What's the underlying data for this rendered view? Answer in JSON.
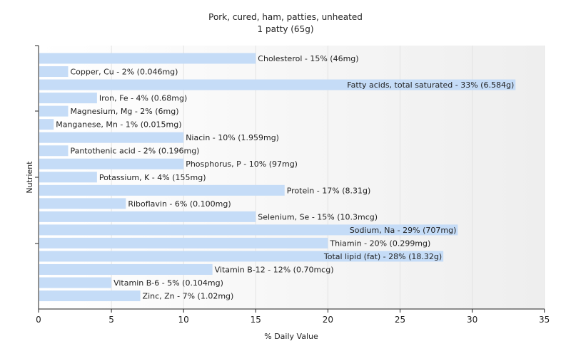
{
  "chart_data": {
    "type": "bar",
    "orientation": "horizontal",
    "title": "Pork, cured, ham, patties, unheated",
    "subtitle": "1 patty (65g)",
    "xlabel": "% Daily Value",
    "ylabel": "Nutrient",
    "xlim": [
      0,
      35
    ],
    "xticks": [
      0,
      5,
      10,
      15,
      20,
      25,
      30,
      35
    ],
    "grid": true,
    "bar_color": "#c5dcf7",
    "categories": [
      "Cholesterol",
      "Copper, Cu",
      "Fatty acids, total saturated",
      "Iron, Fe",
      "Magnesium, Mg",
      "Manganese, Mn",
      "Niacin",
      "Pantothenic acid",
      "Phosphorus, P",
      "Potassium, K",
      "Protein",
      "Riboflavin",
      "Selenium, Se",
      "Sodium, Na",
      "Thiamin",
      "Total lipid (fat)",
      "Vitamin B-12",
      "Vitamin B-6",
      "Zinc, Zn"
    ],
    "values": [
      15,
      2,
      33,
      4,
      2,
      1,
      10,
      2,
      10,
      4,
      17,
      6,
      15,
      29,
      20,
      28,
      12,
      5,
      7
    ],
    "labels": [
      "Cholesterol - 15% (46mg)",
      "Copper, Cu - 2% (0.046mg)",
      "Fatty acids, total saturated - 33% (6.584g)",
      "Iron, Fe - 4% (0.68mg)",
      "Magnesium, Mg - 2% (6mg)",
      "Manganese, Mn - 1% (0.015mg)",
      "Niacin - 10% (1.959mg)",
      "Pantothenic acid - 2% (0.196mg)",
      "Phosphorus, P - 10% (97mg)",
      "Potassium, K - 4% (155mg)",
      "Protein - 17% (8.31g)",
      "Riboflavin - 6% (0.100mg)",
      "Selenium, Se - 15% (10.3mcg)",
      "Sodium, Na - 29% (707mg)",
      "Thiamin - 20% (0.299mg)",
      "Total lipid (fat) - 28% (18.32g)",
      "Vitamin B-12 - 12% (0.70mcg)",
      "Vitamin B-6 - 5% (0.104mg)",
      "Zinc, Zn - 7% (1.02mg)"
    ]
  }
}
